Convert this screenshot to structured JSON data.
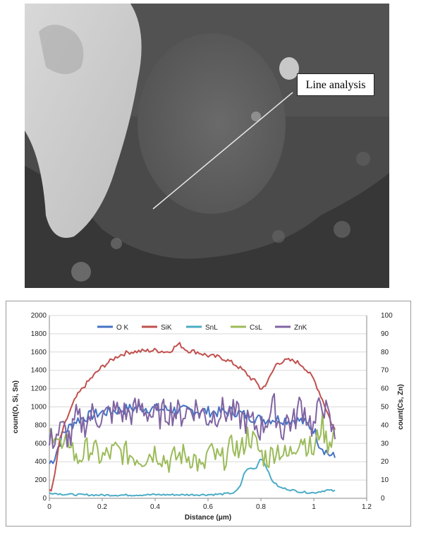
{
  "image": {
    "callout_label": "Line analysis"
  },
  "chart_data": {
    "type": "line",
    "title": "",
    "xlabel": "Distance (μm)",
    "ylabel_left": "count(O, Si, Sn)",
    "ylabel_right": "count(Cs, Zn)",
    "xlim": [
      0,
      1.2
    ],
    "ylim_left": [
      0,
      2000
    ],
    "ylim_right": [
      0,
      100
    ],
    "x_ticks": [
      "0",
      "0.2",
      "0.4",
      "0.6",
      "0.8",
      "1",
      "1.2"
    ],
    "y_left_ticks": [
      "0",
      "200",
      "400",
      "600",
      "800",
      "1000",
      "1200",
      "1400",
      "1600",
      "1800",
      "2000"
    ],
    "y_right_ticks": [
      "0",
      "10",
      "20",
      "30",
      "40",
      "50",
      "60",
      "70",
      "80",
      "90",
      "100"
    ],
    "grid": true,
    "legend_position": "top",
    "series": [
      {
        "name": "O K",
        "axis": "left",
        "color": "#4472c4",
        "x": [
          0,
          0.02,
          0.05,
          0.1,
          0.15,
          0.2,
          0.25,
          0.3,
          0.35,
          0.4,
          0.45,
          0.5,
          0.55,
          0.6,
          0.65,
          0.7,
          0.75,
          0.8,
          0.85,
          0.9,
          0.95,
          1.0,
          1.02,
          1.05,
          1.08
        ],
        "y": [
          380,
          450,
          700,
          850,
          900,
          940,
          960,
          980,
          990,
          980,
          970,
          960,
          960,
          950,
          940,
          950,
          900,
          860,
          870,
          860,
          850,
          760,
          600,
          500,
          440
        ]
      },
      {
        "name": "SiK",
        "axis": "left",
        "color": "#c0504d",
        "x": [
          0,
          0.01,
          0.02,
          0.04,
          0.07,
          0.1,
          0.13,
          0.16,
          0.2,
          0.23,
          0.26,
          0.3,
          0.35,
          0.4,
          0.45,
          0.49,
          0.52,
          0.56,
          0.6,
          0.65,
          0.68,
          0.71,
          0.74,
          0.76,
          0.79,
          0.8,
          0.83,
          0.86,
          0.9,
          0.93,
          0.96,
          1.0,
          1.03,
          1.05,
          1.07,
          1.08
        ],
        "y": [
          100,
          100,
          250,
          650,
          900,
          1100,
          1220,
          1320,
          1440,
          1500,
          1560,
          1600,
          1610,
          1620,
          1600,
          1690,
          1620,
          1600,
          1560,
          1540,
          1500,
          1450,
          1380,
          1320,
          1250,
          1180,
          1300,
          1480,
          1510,
          1500,
          1450,
          1300,
          1100,
          950,
          800,
          750
        ]
      },
      {
        "name": "SnL",
        "axis": "left",
        "color": "#4bacc6",
        "x": [
          0,
          0.05,
          0.1,
          0.2,
          0.3,
          0.4,
          0.5,
          0.6,
          0.65,
          0.7,
          0.72,
          0.74,
          0.76,
          0.78,
          0.8,
          0.82,
          0.84,
          0.87,
          0.9,
          0.95,
          1.0,
          1.05,
          1.08
        ],
        "y": [
          60,
          45,
          40,
          35,
          35,
          40,
          38,
          40,
          45,
          60,
          120,
          300,
          330,
          320,
          450,
          350,
          200,
          120,
          100,
          70,
          60,
          90,
          80
        ]
      },
      {
        "name": "CsL",
        "axis": "right",
        "color": "#9bbb59",
        "x": [
          0,
          0.02,
          0.05,
          0.08,
          0.1,
          0.15,
          0.2,
          0.25,
          0.3,
          0.35,
          0.4,
          0.45,
          0.5,
          0.55,
          0.58,
          0.6,
          0.65,
          0.7,
          0.72,
          0.75,
          0.78,
          0.8,
          0.83,
          0.86,
          0.9,
          0.95,
          1.0,
          1.03,
          1.05,
          1.08
        ],
        "y": [
          34,
          38,
          25,
          33,
          20,
          28,
          22,
          26,
          24,
          22,
          26,
          20,
          24,
          22,
          14,
          26,
          20,
          30,
          24,
          35,
          30,
          24,
          22,
          28,
          22,
          34,
          25,
          42,
          30,
          36
        ]
      },
      {
        "name": "ZnK",
        "axis": "right",
        "color": "#8064a2",
        "x": [
          0,
          0.02,
          0.05,
          0.08,
          0.1,
          0.13,
          0.16,
          0.2,
          0.25,
          0.3,
          0.35,
          0.4,
          0.45,
          0.5,
          0.55,
          0.6,
          0.65,
          0.7,
          0.75,
          0.8,
          0.85,
          0.88,
          0.9,
          0.92,
          0.95,
          1.0,
          1.03,
          1.05,
          1.08
        ],
        "y": [
          30,
          34,
          38,
          32,
          44,
          40,
          46,
          44,
          48,
          46,
          50,
          44,
          48,
          46,
          50,
          44,
          48,
          46,
          42,
          38,
          50,
          36,
          44,
          40,
          52,
          38,
          55,
          45,
          33
        ]
      }
    ]
  }
}
